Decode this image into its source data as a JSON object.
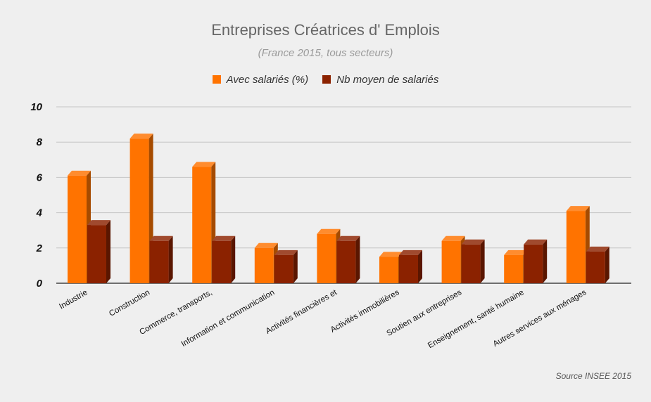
{
  "chart_data": {
    "type": "bar",
    "title": "Entreprises Créatrices d' Emplois",
    "subtitle": "(France 2015, tous secteurs)",
    "source": "Source INSEE 2015",
    "categories": [
      "Industrie",
      "Construction",
      "Commerce, transports,",
      "Information et communication",
      "Activités financières et",
      "Activités immobilières",
      "Soutien aux entreprises",
      "Enseignement, santé humaine",
      "Autres services aux ménages"
    ],
    "series": [
      {
        "name": "Avec salariés (%)",
        "color": "#ff7300",
        "values": [
          6.1,
          8.2,
          6.6,
          2.0,
          2.8,
          1.5,
          2.4,
          1.6,
          4.1
        ]
      },
      {
        "name": "Nb moyen de salariés",
        "color": "#8b2200",
        "values": [
          3.3,
          2.4,
          2.4,
          1.6,
          2.4,
          1.6,
          2.2,
          2.2,
          1.8
        ]
      }
    ],
    "y_ticks": [
      "0",
      "2",
      "4",
      "6",
      "8",
      "10"
    ],
    "ylim": [
      0,
      10
    ],
    "grid": true,
    "legend_position": "top-center",
    "style": "3d"
  }
}
